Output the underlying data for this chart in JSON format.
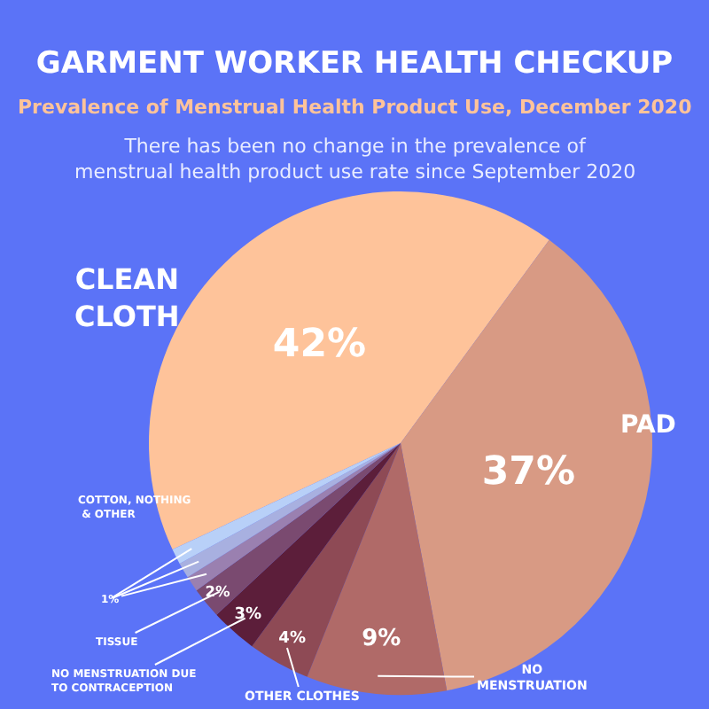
{
  "chart_data": {
    "type": "pie",
    "title": "GARMENT WORKER HEALTH CHECKUP",
    "subtitle": "Prevalence of Menstrual Health Product Use, December 2020",
    "annotations": [
      "There has been no change in the prevalence of menstrual health product use rate since September 2020",
      "COTTON, NOTHING & OTHER",
      "1%"
    ],
    "categories": [
      "CLEAN CLOTH",
      "PAD",
      "NO MENSTRUATION",
      "OTHER CLOTHES",
      "NO MENSTRUATION DUE TO CONTRACEPTION",
      "TISSUE",
      null,
      null,
      null
    ],
    "values": [
      42,
      37,
      9,
      4,
      3,
      2,
      1,
      1,
      1
    ],
    "value_labels": [
      "42%",
      "37%",
      "9%",
      "4%",
      "3%",
      "2%",
      null,
      null,
      null
    ],
    "colors": [
      "#fec39a",
      "#d89a84",
      "#b06a68",
      "#8e4a55",
      "#5c1e3a",
      "#7a4a70",
      "#9a80b0",
      "#a8b0e0",
      "#b8d0f8"
    ]
  }
}
